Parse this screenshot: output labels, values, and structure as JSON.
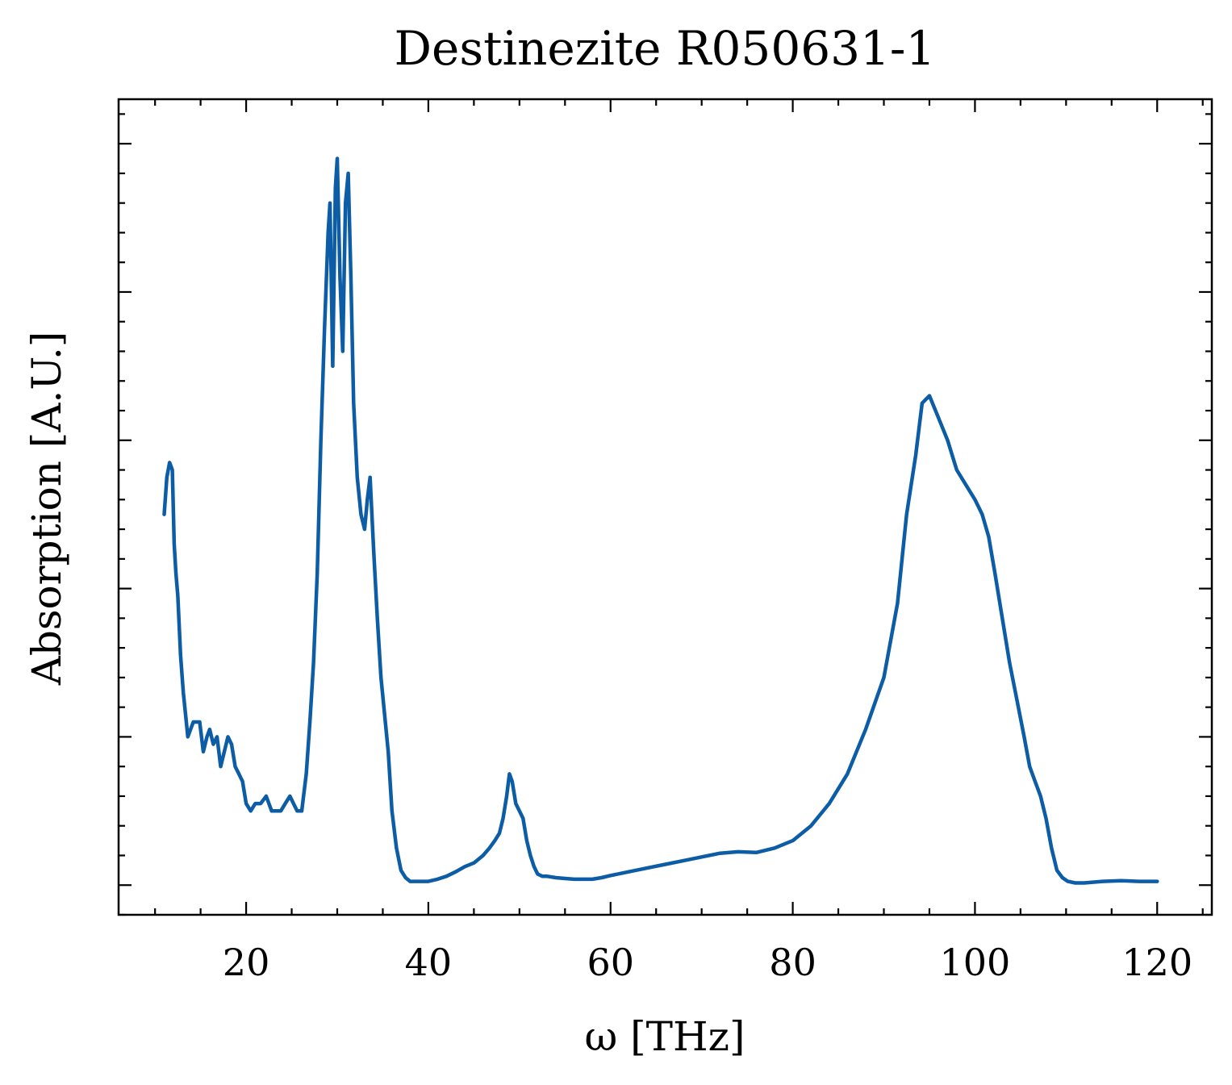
{
  "chart_data": {
    "type": "line",
    "title": "Destinezite R050631-1",
    "xlabel": "ω [THz]",
    "ylabel": "Absorption [A.U.]",
    "xlim": [
      6,
      126
    ],
    "ylim": [
      -0.04,
      1.06
    ],
    "x_ticks": [
      20,
      40,
      60,
      80,
      100,
      120
    ],
    "x_tick_labels": [
      "20",
      "40",
      "60",
      "80",
      "100",
      "120"
    ],
    "y_tick_labels_visible": false,
    "legend": "none",
    "grid": false,
    "line_color": "#0c5da5",
    "series": [
      {
        "x": [
          11.0,
          11.3,
          11.6,
          11.9,
          12.1,
          12.3,
          12.5,
          12.8,
          13.1,
          13.6,
          14.2,
          14.9,
          15.3,
          15.7,
          16.0,
          16.4,
          16.8,
          17.2,
          17.6,
          18.0,
          18.4,
          18.8,
          19.2,
          19.6,
          20.0,
          20.5,
          21.0,
          21.6,
          22.2,
          22.8,
          23.3,
          23.8,
          24.3,
          24.8,
          25.2,
          25.6,
          26.1,
          26.6,
          27.0,
          27.4,
          27.8,
          28.2,
          28.6,
          29.0,
          29.2,
          29.5,
          29.8,
          30.0,
          30.3,
          30.6,
          30.9,
          31.2,
          31.5,
          31.8,
          32.2,
          32.6,
          33.0,
          33.3,
          33.6,
          34.0,
          34.4,
          34.8,
          35.2,
          35.6,
          36.0,
          36.5,
          37.0,
          37.5,
          38.0,
          39.0,
          40.0,
          41.0,
          42.0,
          43.0,
          44.0,
          45.0,
          46.0,
          46.7,
          47.3,
          47.8,
          48.2,
          48.6,
          48.9,
          49.2,
          49.6,
          50.0,
          50.4,
          50.8,
          51.2,
          51.6,
          52.0,
          52.5,
          53.0,
          54.0,
          55.0,
          56.0,
          57.0,
          58.0,
          59.0,
          60.0,
          62.0,
          64.0,
          66.0,
          68.0,
          70.0,
          72.0,
          74.0,
          76.0,
          78.0,
          80.0,
          82.0,
          84.0,
          86.0,
          88.0,
          90.0,
          91.5,
          92.5,
          93.5,
          94.2,
          95.0,
          96.0,
          97.0,
          98.0,
          99.0,
          100.0,
          100.8,
          101.5,
          102.2,
          103.0,
          103.8,
          104.6,
          105.4,
          106.0,
          106.6,
          107.2,
          107.8,
          108.4,
          109.0,
          109.6,
          110.2,
          111.0,
          112.0,
          114.0,
          116.0,
          118.0,
          120.0
        ],
        "y": [
          0.5,
          0.55,
          0.57,
          0.56,
          0.46,
          0.42,
          0.39,
          0.31,
          0.26,
          0.2,
          0.22,
          0.22,
          0.18,
          0.2,
          0.21,
          0.19,
          0.2,
          0.16,
          0.18,
          0.2,
          0.19,
          0.16,
          0.15,
          0.14,
          0.11,
          0.1,
          0.11,
          0.11,
          0.12,
          0.1,
          0.1,
          0.1,
          0.11,
          0.12,
          0.11,
          0.1,
          0.1,
          0.15,
          0.22,
          0.3,
          0.42,
          0.6,
          0.75,
          0.88,
          0.92,
          0.7,
          0.94,
          0.98,
          0.82,
          0.72,
          0.92,
          0.96,
          0.82,
          0.65,
          0.55,
          0.5,
          0.48,
          0.52,
          0.55,
          0.45,
          0.36,
          0.28,
          0.23,
          0.18,
          0.1,
          0.05,
          0.02,
          0.01,
          0.005,
          0.005,
          0.005,
          0.008,
          0.012,
          0.018,
          0.025,
          0.03,
          0.04,
          0.05,
          0.06,
          0.07,
          0.09,
          0.12,
          0.15,
          0.14,
          0.11,
          0.1,
          0.09,
          0.06,
          0.04,
          0.025,
          0.015,
          0.012,
          0.012,
          0.01,
          0.009,
          0.008,
          0.008,
          0.008,
          0.01,
          0.013,
          0.018,
          0.023,
          0.028,
          0.033,
          0.038,
          0.043,
          0.045,
          0.044,
          0.05,
          0.06,
          0.08,
          0.11,
          0.15,
          0.21,
          0.28,
          0.38,
          0.5,
          0.58,
          0.65,
          0.66,
          0.63,
          0.6,
          0.56,
          0.54,
          0.52,
          0.5,
          0.47,
          0.42,
          0.36,
          0.3,
          0.25,
          0.2,
          0.16,
          0.14,
          0.12,
          0.09,
          0.05,
          0.02,
          0.01,
          0.005,
          0.003,
          0.003,
          0.005,
          0.006,
          0.005,
          0.005
        ]
      }
    ]
  }
}
